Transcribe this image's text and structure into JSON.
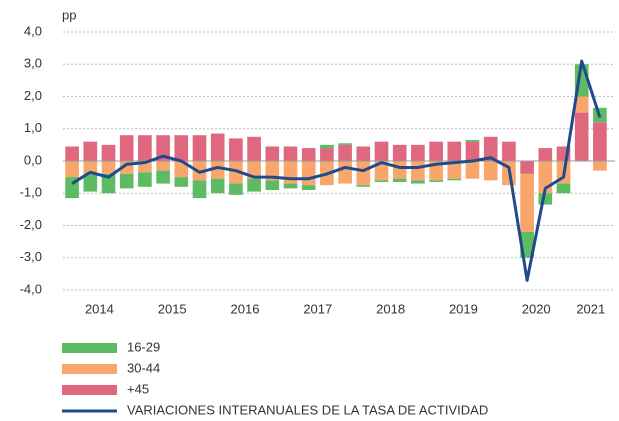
{
  "chart_data": {
    "type": "stacked_bar_line",
    "y_unit_label": "pp",
    "categories": [
      "2014",
      null,
      null,
      null,
      "2015",
      null,
      null,
      null,
      "2016",
      null,
      null,
      null,
      "2017",
      null,
      null,
      null,
      "2018",
      null,
      null,
      null,
      "2019",
      null,
      null,
      null,
      "2020",
      null,
      null,
      null,
      "2021",
      null
    ],
    "series": [
      {
        "name": "16-29",
        "color": "#5dbb63",
        "values": [
          -0.65,
          -0.55,
          -0.6,
          -0.45,
          -0.45,
          -0.4,
          -0.3,
          -0.55,
          -0.45,
          -0.35,
          -0.4,
          -0.3,
          -0.15,
          -0.15,
          0.1,
          0.05,
          -0.05,
          -0.05,
          -0.1,
          -0.1,
          -0.05,
          -0.05,
          0.05,
          0,
          0,
          -0.8,
          -0.35,
          -0.3,
          1.0,
          0.45
        ]
      },
      {
        "name": "30-44",
        "color": "#f9a66c",
        "values": [
          -0.5,
          -0.4,
          -0.4,
          -0.4,
          -0.35,
          -0.3,
          -0.5,
          -0.6,
          -0.55,
          -0.7,
          -0.55,
          -0.6,
          -0.7,
          -0.75,
          -0.75,
          -0.7,
          -0.75,
          -0.6,
          -0.55,
          -0.6,
          -0.6,
          -0.55,
          -0.55,
          -0.6,
          -0.75,
          -1.8,
          -1.0,
          -0.7,
          0.5,
          -0.3
        ]
      },
      {
        "name": "+45",
        "color": "#e0687e",
        "values": [
          0.45,
          0.6,
          0.5,
          0.8,
          0.8,
          0.8,
          0.8,
          0.8,
          0.85,
          0.7,
          0.75,
          0.45,
          0.45,
          0.4,
          0.4,
          0.5,
          0.45,
          0.6,
          0.5,
          0.5,
          0.6,
          0.6,
          0.6,
          0.75,
          0.6,
          -0.4,
          0.4,
          0.45,
          1.5,
          1.2
        ]
      }
    ],
    "line": {
      "name": "VARIACIONES INTERANUALES DE LA TASA DE ACTIVIDAD",
      "color": "#1f4b8a",
      "values": [
        -0.7,
        -0.35,
        -0.5,
        -0.1,
        -0.05,
        0.15,
        0.0,
        -0.35,
        -0.2,
        -0.3,
        -0.5,
        -0.5,
        -0.55,
        -0.55,
        -0.4,
        -0.2,
        -0.3,
        -0.05,
        -0.2,
        -0.2,
        -0.1,
        -0.05,
        0.0,
        0.1,
        -0.2,
        -3.7,
        -0.85,
        -0.5,
        3.1,
        1.35
      ]
    },
    "ylim": [
      -4,
      4
    ],
    "yticks": [
      {
        "value": -4,
        "label": "-4,0"
      },
      {
        "value": -3,
        "label": "-3,0"
      },
      {
        "value": -2,
        "label": "-2,0"
      },
      {
        "value": -1,
        "label": "-1,0"
      },
      {
        "value": 0,
        "label": "0,0"
      },
      {
        "value": 1,
        "label": "1,0"
      },
      {
        "value": 2,
        "label": "2,0"
      },
      {
        "value": 3,
        "label": "3,0"
      },
      {
        "value": 4,
        "label": "4,0"
      }
    ],
    "grid": true
  }
}
